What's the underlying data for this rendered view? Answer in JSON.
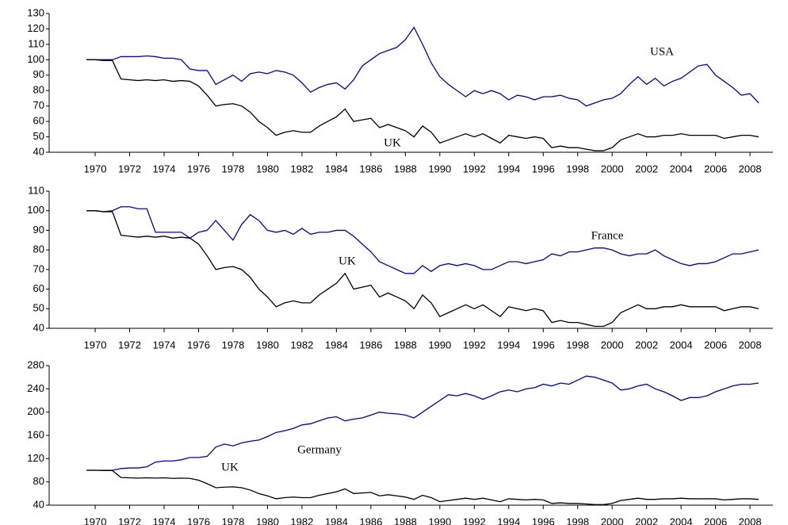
{
  "chart_data": [
    {
      "type": "line",
      "x": [
        1969.5,
        1970,
        1970.5,
        1971,
        1971.5,
        1972,
        1972.5,
        1973,
        1973.5,
        1974,
        1974.5,
        1975,
        1975.5,
        1976,
        1976.5,
        1977,
        1977.5,
        1978,
        1978.5,
        1979,
        1979.5,
        1980,
        1980.5,
        1981,
        1981.5,
        1982,
        1982.5,
        1983,
        1983.5,
        1984,
        1984.5,
        1985,
        1985.5,
        1986,
        1986.5,
        1987,
        1987.5,
        1988,
        1988.5,
        1989,
        1989.5,
        1990,
        1990.5,
        1991,
        1991.5,
        1992,
        1992.5,
        1993,
        1993.5,
        1994,
        1994.5,
        1995,
        1995.5,
        1996,
        1996.5,
        1997,
        1997.5,
        1998,
        1998.5,
        1999,
        1999.5,
        2000,
        2000.5,
        2001,
        2001.5,
        2002,
        2002.5,
        2003,
        2003.5,
        2004,
        2004.5,
        2005,
        2005.5,
        2006,
        2006.5,
        2007,
        2007.5,
        2008,
        2008.5
      ],
      "xlim": [
        1967.33,
        2009.33
      ],
      "xticks": [
        1970,
        1972,
        1974,
        1976,
        1978,
        1980,
        1982,
        1984,
        1986,
        1988,
        1990,
        1992,
        1994,
        1996,
        1998,
        2000,
        2002,
        2004,
        2006,
        2008
      ],
      "ylim": [
        40,
        130
      ],
      "yticks": [
        40,
        50,
        60,
        70,
        80,
        90,
        100,
        110,
        120,
        130
      ],
      "series": [
        {
          "name": "USA",
          "color": "#0000cc",
          "values": [
            100,
            100,
            100,
            100,
            102,
            102,
            102,
            102.5,
            102,
            101,
            101,
            100,
            94,
            93,
            93,
            84,
            87,
            90,
            86,
            91,
            92,
            91,
            93,
            92,
            90,
            85,
            79,
            82,
            84,
            85,
            81,
            87,
            96,
            100,
            104,
            106,
            108,
            113,
            121,
            110,
            98,
            89,
            84,
            80,
            76,
            80,
            78,
            80,
            78,
            74,
            77,
            76,
            74,
            76,
            76,
            77,
            75,
            74,
            70,
            72,
            74,
            75,
            78,
            84,
            89,
            84,
            88,
            83,
            86,
            88,
            92,
            96,
            97,
            90,
            86,
            82,
            77,
            78,
            72
          ]
        },
        {
          "name": "UK",
          "color": "#000000",
          "values": [
            100,
            100,
            99.5,
            99.5,
            87.5,
            87,
            86.5,
            87,
            86.5,
            87,
            86,
            86.5,
            86,
            83,
            77,
            70,
            71,
            71.5,
            70,
            66,
            60,
            56,
            51,
            53,
            54,
            53,
            53,
            57,
            60,
            63,
            68,
            60,
            61,
            62,
            56,
            58,
            56,
            54,
            50,
            57,
            53,
            46,
            48,
            50,
            52,
            50,
            52,
            49,
            46,
            51,
            50,
            49,
            50,
            49,
            43,
            44,
            43,
            43,
            42,
            41,
            41,
            43,
            48,
            50,
            52,
            50,
            50,
            51,
            51,
            52,
            51,
            51,
            51,
            51,
            49,
            50,
            51,
            51,
            50
          ]
        }
      ]
    },
    {
      "type": "line",
      "x": [
        1969.5,
        1970,
        1970.5,
        1971,
        1971.5,
        1972,
        1972.5,
        1973,
        1973.5,
        1974,
        1974.5,
        1975,
        1975.5,
        1976,
        1976.5,
        1977,
        1977.5,
        1978,
        1978.5,
        1979,
        1979.5,
        1980,
        1980.5,
        1981,
        1981.5,
        1982,
        1982.5,
        1983,
        1983.5,
        1984,
        1984.5,
        1985,
        1985.5,
        1986,
        1986.5,
        1987,
        1987.5,
        1988,
        1988.5,
        1989,
        1989.5,
        1990,
        1990.5,
        1991,
        1991.5,
        1992,
        1992.5,
        1993,
        1993.5,
        1994,
        1994.5,
        1995,
        1995.5,
        1996,
        1996.5,
        1997,
        1997.5,
        1998,
        1998.5,
        1999,
        1999.5,
        2000,
        2000.5,
        2001,
        2001.5,
        2002,
        2002.5,
        2003,
        2003.5,
        2004,
        2004.5,
        2005,
        2005.5,
        2006,
        2006.5,
        2007,
        2007.5,
        2008,
        2008.5
      ],
      "xlim": [
        1967.33,
        2009.33
      ],
      "xticks": [
        1970,
        1972,
        1974,
        1976,
        1978,
        1980,
        1982,
        1984,
        1986,
        1988,
        1990,
        1992,
        1994,
        1996,
        1998,
        2000,
        2002,
        2004,
        2006,
        2008
      ],
      "ylim": [
        40,
        110
      ],
      "yticks": [
        40,
        50,
        60,
        70,
        80,
        90,
        100,
        110
      ],
      "series": [
        {
          "name": "France",
          "color": "#0000cc",
          "values": [
            100,
            100,
            99.5,
            100,
            102,
            102,
            101,
            101,
            89,
            89,
            89,
            89,
            86,
            89,
            90,
            95,
            90,
            85,
            93,
            98,
            95,
            90,
            89,
            90,
            88,
            91,
            88,
            89,
            89,
            90,
            90,
            87,
            83,
            79,
            74,
            72,
            70,
            68,
            68,
            72,
            69,
            72,
            73,
            72,
            73,
            72,
            70,
            70,
            72,
            74,
            74,
            73,
            74,
            75,
            78,
            77,
            79,
            79,
            80,
            81,
            81,
            80,
            78,
            77,
            78,
            78,
            80,
            77,
            75,
            73,
            72,
            73,
            73,
            74,
            76,
            78,
            78,
            79,
            80
          ]
        },
        {
          "name": "UK",
          "color": "#000000",
          "values": [
            100,
            100,
            99.5,
            99.5,
            87.5,
            87,
            86.5,
            87,
            86.5,
            87,
            86,
            86.5,
            86,
            83,
            77,
            70,
            71,
            71.5,
            70,
            66,
            60,
            56,
            51,
            53,
            54,
            53,
            53,
            57,
            60,
            63,
            68,
            60,
            61,
            62,
            56,
            58,
            56,
            54,
            50,
            57,
            53,
            46,
            48,
            50,
            52,
            50,
            52,
            49,
            46,
            51,
            50,
            49,
            50,
            49,
            43,
            44,
            43,
            43,
            42,
            41,
            41,
            43,
            48,
            50,
            52,
            50,
            50,
            51,
            51,
            52,
            51,
            51,
            51,
            51,
            49,
            50,
            51,
            51,
            50
          ]
        }
      ]
    },
    {
      "type": "line",
      "x": [
        1969.5,
        1970,
        1970.5,
        1971,
        1971.5,
        1972,
        1972.5,
        1973,
        1973.5,
        1974,
        1974.5,
        1975,
        1975.5,
        1976,
        1976.5,
        1977,
        1977.5,
        1978,
        1978.5,
        1979,
        1979.5,
        1980,
        1980.5,
        1981,
        1981.5,
        1982,
        1982.5,
        1983,
        1983.5,
        1984,
        1984.5,
        1985,
        1985.5,
        1986,
        1986.5,
        1987,
        1987.5,
        1988,
        1988.5,
        1989,
        1989.5,
        1990,
        1990.5,
        1991,
        1991.5,
        1992,
        1992.5,
        1993,
        1993.5,
        1994,
        1994.5,
        1995,
        1995.5,
        1996,
        1996.5,
        1997,
        1997.5,
        1998,
        1998.5,
        1999,
        1999.5,
        2000,
        2000.5,
        2001,
        2001.5,
        2002,
        2002.5,
        2003,
        2003.5,
        2004,
        2004.5,
        2005,
        2005.5,
        2006,
        2006.5,
        2007,
        2007.5,
        2008,
        2008.5
      ],
      "xlim": [
        1967.33,
        2009.33
      ],
      "xticks": [
        1970,
        1972,
        1974,
        1976,
        1978,
        1980,
        1982,
        1984,
        1986,
        1988,
        1990,
        1992,
        1994,
        1996,
        1998,
        2000,
        2002,
        2004,
        2006,
        2008
      ],
      "ylim": [
        40,
        280
      ],
      "yticks": [
        40,
        80,
        120,
        160,
        200,
        240,
        280
      ],
      "series": [
        {
          "name": "Germany",
          "color": "#0000cc",
          "values": [
            100,
            100,
            100,
            100,
            103,
            104,
            104,
            106,
            114,
            116,
            116,
            118,
            122,
            122,
            124,
            140,
            145,
            142,
            147,
            150,
            152,
            158,
            165,
            168,
            172,
            178,
            180,
            185,
            190,
            192,
            185,
            188,
            190,
            195,
            200,
            198,
            197,
            195,
            190,
            200,
            210,
            220,
            230,
            228,
            232,
            228,
            222,
            228,
            235,
            238,
            235,
            240,
            242,
            248,
            245,
            250,
            248,
            255,
            262,
            260,
            255,
            250,
            238,
            240,
            245,
            248,
            240,
            235,
            228,
            220,
            225,
            225,
            228,
            235,
            240,
            245,
            248,
            248,
            250
          ]
        },
        {
          "name": "UK",
          "color": "#000000",
          "values": [
            100,
            100,
            99.5,
            99.5,
            87.5,
            87,
            86.5,
            87,
            86.5,
            87,
            86,
            86.5,
            86,
            83,
            77,
            70,
            71,
            71.5,
            70,
            66,
            60,
            56,
            51,
            53,
            54,
            53,
            53,
            57,
            60,
            63,
            68,
            60,
            61,
            62,
            56,
            58,
            56,
            54,
            50,
            57,
            53,
            46,
            48,
            50,
            52,
            50,
            52,
            49,
            46,
            51,
            50,
            49,
            50,
            49,
            43,
            44,
            43,
            43,
            42,
            41,
            41,
            43,
            48,
            50,
            52,
            50,
            50,
            51,
            51,
            52,
            51,
            51,
            51,
            51,
            49,
            50,
            51,
            51,
            50
          ]
        }
      ]
    }
  ]
}
